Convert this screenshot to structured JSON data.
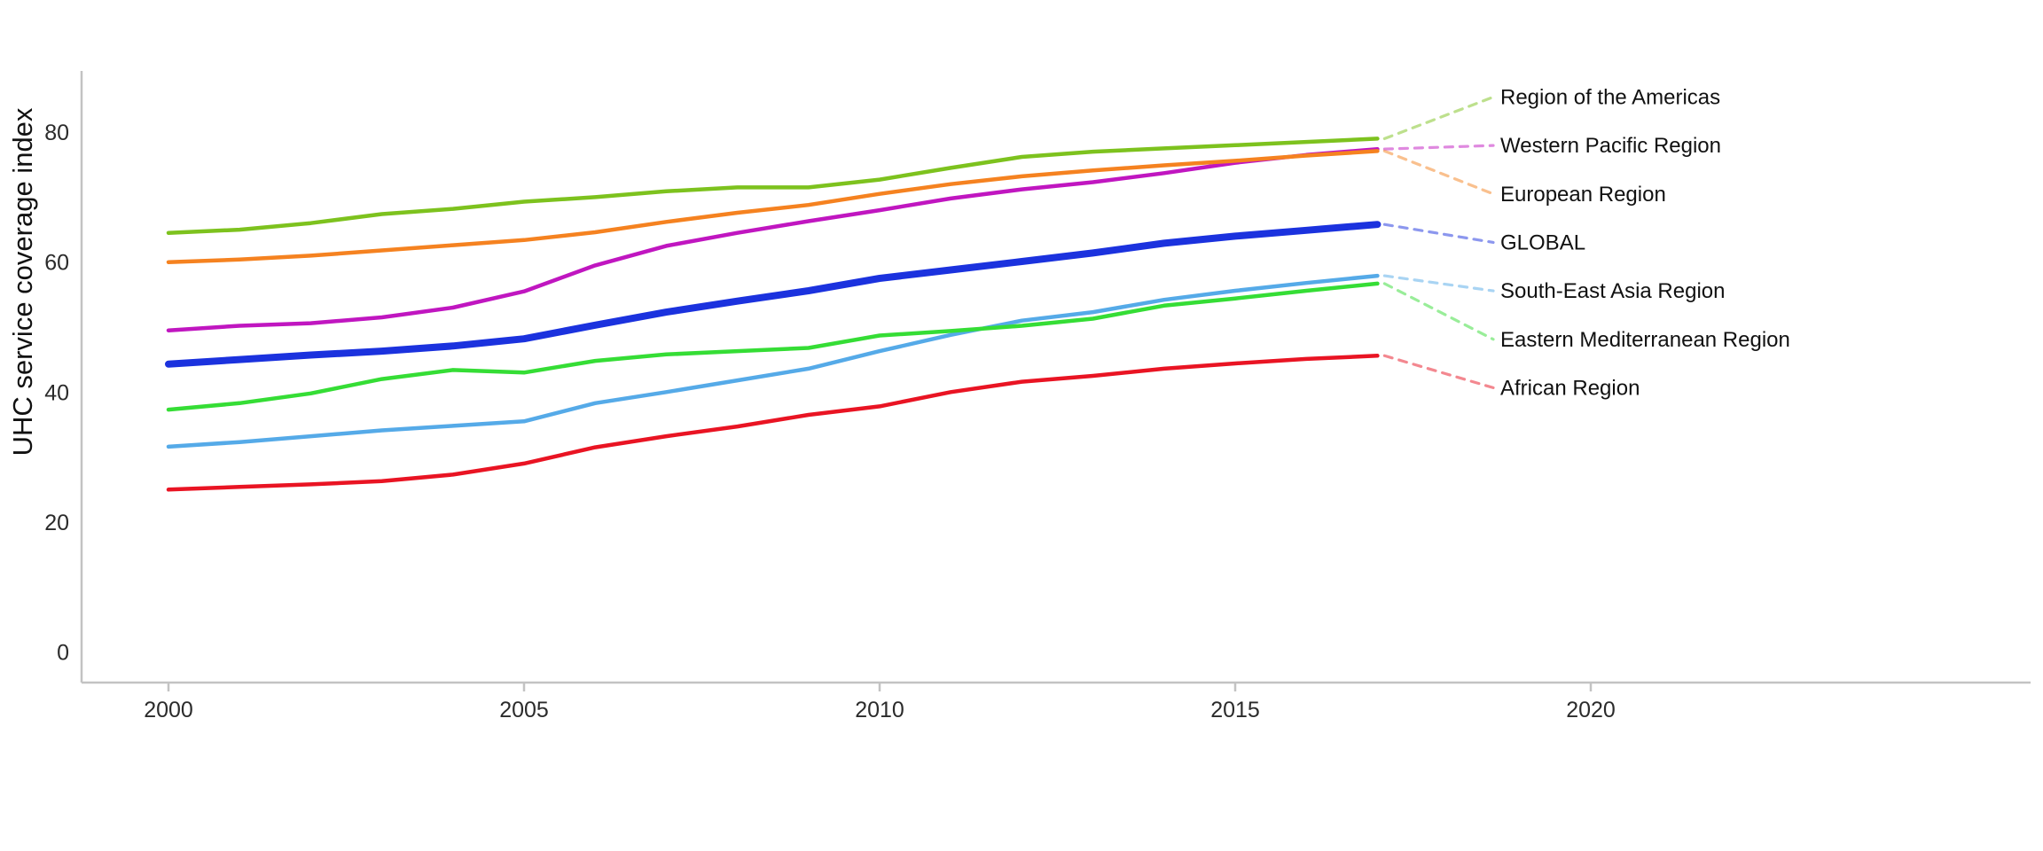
{
  "figure": {
    "ylabel": "UHC service coverage index",
    "background": "#ffffff",
    "axis_color": "#c3c3c3",
    "tick_label_color": "#2b2b2b",
    "label_text_color": "#111111"
  },
  "chart_data": {
    "type": "line",
    "title": "",
    "xlabel": "",
    "ylabel": "UHC service coverage index",
    "grid": false,
    "legend_position": "right-end-annotations",
    "x": [
      2000,
      2001,
      2002,
      2003,
      2004,
      2005,
      2006,
      2007,
      2008,
      2009,
      2010,
      2011,
      2012,
      2013,
      2014,
      2015,
      2016,
      2017
    ],
    "x_ticks": [
      2000,
      2005,
      2010,
      2015,
      2020
    ],
    "y_ticks": [
      0,
      20,
      40,
      60,
      80
    ],
    "xlim": [
      1998.8,
      2026.2
    ],
    "ylim": [
      -4.8,
      89.8
    ],
    "series": [
      {
        "name": "Region of the Americas",
        "color": "#7dc21e",
        "line_width": 4.5,
        "values": [
          64.5,
          65.0,
          66.0,
          67.4,
          68.2,
          69.3,
          70.0,
          70.9,
          71.5,
          71.5,
          72.7,
          74.5,
          76.2,
          77.0,
          77.5,
          78.0,
          78.5,
          79.0
        ]
      },
      {
        "name": "Western Pacific Region",
        "color": "#c016c0",
        "line_width": 4.5,
        "values": [
          49.5,
          50.2,
          50.6,
          51.5,
          53.0,
          55.5,
          59.5,
          62.5,
          64.5,
          66.3,
          68.0,
          69.8,
          71.2,
          72.3,
          73.7,
          75.3,
          76.5,
          77.4
        ]
      },
      {
        "name": "European Region",
        "color": "#f58220",
        "line_width": 4.5,
        "values": [
          60.0,
          60.4,
          61.0,
          61.8,
          62.6,
          63.4,
          64.6,
          66.2,
          67.6,
          68.8,
          70.5,
          72.0,
          73.2,
          74.1,
          74.9,
          75.6,
          76.4,
          77.1
        ]
      },
      {
        "name": "GLOBAL",
        "color": "#1b32de",
        "line_width": 8,
        "values": [
          44.3,
          45.0,
          45.7,
          46.3,
          47.1,
          48.2,
          50.3,
          52.3,
          54.0,
          55.6,
          57.5,
          58.8,
          60.1,
          61.4,
          62.9,
          64.0,
          64.9,
          65.8
        ]
      },
      {
        "name": "South-East Asia Region",
        "color": "#55aae8",
        "line_width": 4.5,
        "values": [
          31.6,
          32.3,
          33.2,
          34.1,
          34.8,
          35.5,
          38.3,
          40.0,
          41.8,
          43.6,
          46.3,
          48.8,
          51.0,
          52.3,
          54.2,
          55.6,
          56.8,
          57.9
        ]
      },
      {
        "name": "Eastern Mediterranean Region",
        "color": "#35dd35",
        "line_width": 4.5,
        "values": [
          37.3,
          38.3,
          39.8,
          42.0,
          43.4,
          43.0,
          44.8,
          45.8,
          46.3,
          46.8,
          48.7,
          49.4,
          50.2,
          51.3,
          53.3,
          54.4,
          55.6,
          56.7
        ]
      },
      {
        "name": "African Region",
        "color": "#e91423",
        "line_width": 4.5,
        "values": [
          25.0,
          25.4,
          25.8,
          26.3,
          27.3,
          29.0,
          31.5,
          33.2,
          34.7,
          36.5,
          37.8,
          40.0,
          41.6,
          42.5,
          43.6,
          44.4,
          45.1,
          45.6
        ]
      }
    ]
  }
}
